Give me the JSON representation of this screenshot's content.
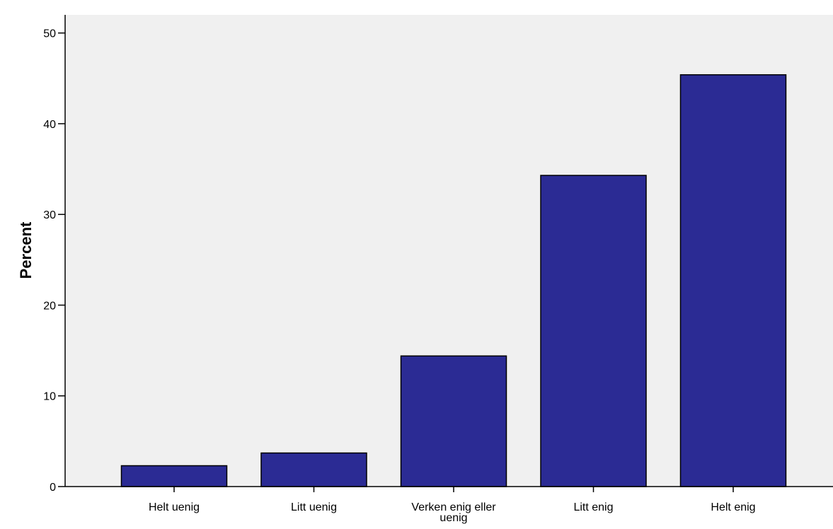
{
  "chart_data": {
    "type": "bar",
    "title": "",
    "xlabel": "",
    "ylabel": "Percent",
    "ylim": [
      0,
      52
    ],
    "yticks": [
      0,
      10,
      20,
      30,
      40,
      50
    ],
    "grid": false,
    "categories": [
      "Helt uenig",
      "Litt uenig",
      "Verken enig eller uenig",
      "Litt enig",
      "Helt enig"
    ],
    "category_lines": [
      [
        "Helt uenig"
      ],
      [
        "Litt uenig"
      ],
      [
        "Verken enig eller",
        "uenig"
      ],
      [
        "Litt enig"
      ],
      [
        "Helt enig"
      ]
    ],
    "values": [
      2.3,
      3.7,
      14.4,
      34.3,
      45.4
    ],
    "colors": {
      "bar_fill": "#2b2b94",
      "bar_stroke": "#000000",
      "plot_background": "#f0f0f0",
      "axis": "#000000"
    }
  }
}
